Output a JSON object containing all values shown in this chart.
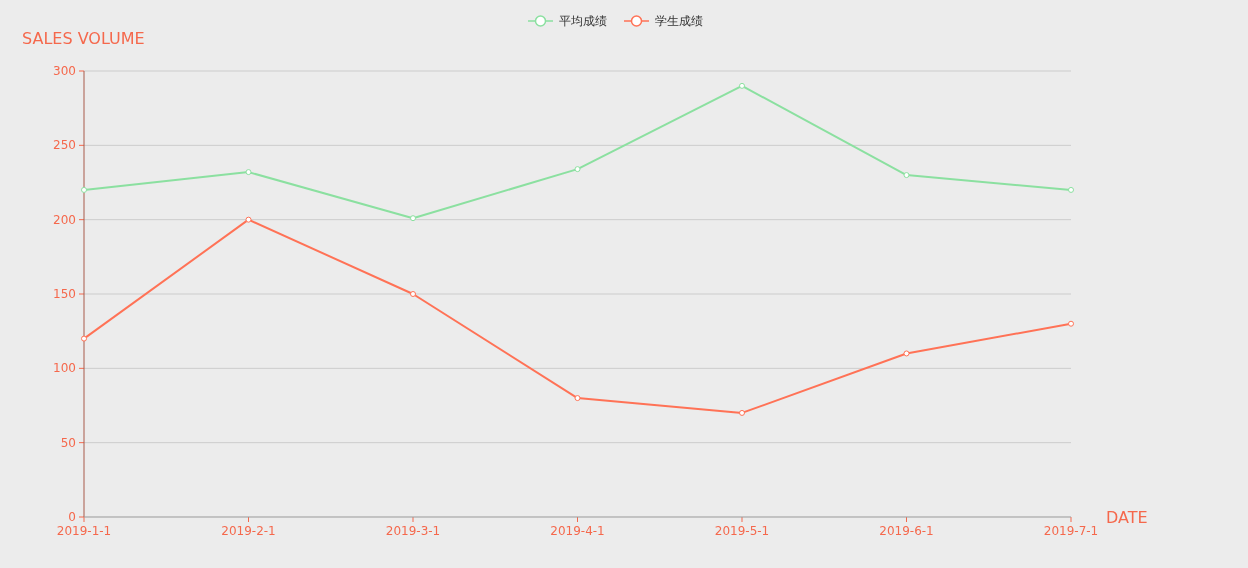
{
  "chart_data": {
    "type": "line",
    "xlabel": "DATE",
    "ylabel": "SALES VOLUME",
    "categories": [
      "2019-1-1",
      "2019-2-1",
      "2019-3-1",
      "2019-4-1",
      "2019-5-1",
      "2019-6-1",
      "2019-7-1"
    ],
    "series": [
      {
        "name": "平均成绩",
        "color": "#8be0a0",
        "values": [
          220,
          232,
          201,
          234,
          290,
          230,
          220
        ]
      },
      {
        "name": "学生成绩",
        "color": "#ff7256",
        "values": [
          120,
          200,
          150,
          80,
          70,
          110,
          130
        ]
      }
    ],
    "ylim": [
      0,
      300
    ],
    "yticks": [
      0,
      50,
      100,
      150,
      200,
      250,
      300
    ],
    "grid": "y",
    "legend": "top",
    "marker": "circle",
    "line_style": "solid"
  }
}
